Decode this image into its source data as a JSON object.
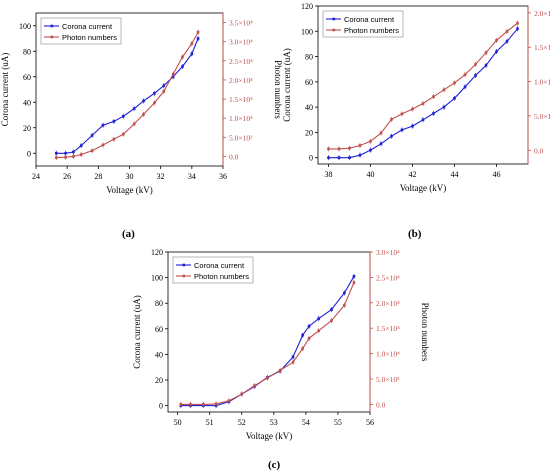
{
  "chart_data": [
    {
      "type": "line",
      "panel_label": "(a)",
      "xlabel": "Voltage (kV)",
      "ylabel_left": "Corona current (uA)",
      "ylabel_right": "Photon numbers",
      "xlim": [
        24,
        36
      ],
      "ylim_left": [
        -10,
        110
      ],
      "ylim_right": [
        -2500,
        37500
      ],
      "x_ticks": [
        "24",
        "26",
        "28",
        "30",
        "32",
        "34",
        "36"
      ],
      "y_left_ticks": [
        "0",
        "20",
        "40",
        "60",
        "80",
        "100"
      ],
      "y_right_ticks": [
        "0.0",
        "5.0×10³",
        "1.0×10⁴",
        "1.5×10⁴",
        "2.0×10⁴",
        "2.5×10⁴",
        "3.0×10⁴",
        "3.5×10⁴"
      ],
      "legend_position": "top-left",
      "series": [
        {
          "name": "Corona current",
          "axis": "left",
          "color": "#1f1fd6",
          "x": [
            25.3,
            25.9,
            26.4,
            26.9,
            27.6,
            28.3,
            29.0,
            29.6,
            30.3,
            30.9,
            31.6,
            32.2,
            32.8,
            33.4,
            34.0,
            34.4
          ],
          "y": [
            0,
            0,
            1,
            6,
            14,
            22,
            25,
            29,
            35,
            41,
            47,
            53,
            60,
            68,
            78,
            90
          ]
        },
        {
          "name": "Photon numbers",
          "axis": "right",
          "color": "#c0504d",
          "x": [
            25.3,
            25.9,
            26.4,
            26.9,
            27.6,
            28.3,
            29.0,
            29.6,
            30.3,
            30.9,
            31.6,
            32.2,
            32.8,
            33.4,
            34.0,
            34.4
          ],
          "y": [
            -300,
            -200,
            0,
            500,
            1500,
            3000,
            4500,
            5800,
            8500,
            11000,
            14000,
            17000,
            21500,
            26000,
            29500,
            32500
          ]
        }
      ]
    },
    {
      "type": "line",
      "panel_label": "(b)",
      "xlabel": "Voltage (kV)",
      "ylabel_left": "Corona current (uA)",
      "ylabel_right": "Photon numbers",
      "xlim": [
        37.5,
        47.5
      ],
      "ylim_left": [
        -5,
        120
      ],
      "ylim_right": [
        -2000,
        21000
      ],
      "x_ticks": [
        "38",
        "40",
        "42",
        "44",
        "46"
      ],
      "y_left_ticks": [
        "0",
        "20",
        "40",
        "60",
        "80",
        "100",
        "120"
      ],
      "y_right_ticks": [
        "0.0",
        "5.0×10³",
        "1.0×10⁴",
        "1.5×10⁴",
        "2.0×10⁴"
      ],
      "legend_position": "top-left",
      "series": [
        {
          "name": "Corona current",
          "axis": "left",
          "color": "#1f1fd6",
          "x": [
            38.0,
            38.5,
            39.0,
            39.5,
            40.0,
            40.5,
            41.0,
            41.5,
            42.0,
            42.5,
            43.0,
            43.5,
            44.0,
            44.5,
            45.0,
            45.5,
            46.0,
            46.5,
            47.0
          ],
          "y": [
            0,
            0,
            0,
            2,
            6,
            11,
            17,
            22,
            25,
            30,
            35,
            40,
            47,
            56,
            65,
            73,
            84,
            92,
            102
          ]
        },
        {
          "name": "Photon numbers",
          "axis": "right",
          "color": "#c0504d",
          "x": [
            38.0,
            38.5,
            39.0,
            39.5,
            40.0,
            40.5,
            41.0,
            41.5,
            42.0,
            42.5,
            43.0,
            43.5,
            44.0,
            44.5,
            45.0,
            45.5,
            46.0,
            46.5,
            47.0
          ],
          "y": [
            200,
            200,
            300,
            700,
            1300,
            2500,
            4500,
            5300,
            6000,
            6800,
            7800,
            8800,
            9800,
            11000,
            12500,
            14200,
            16000,
            17300,
            18500
          ]
        }
      ]
    },
    {
      "type": "line",
      "panel_label": "(c)",
      "xlabel": "Voltage (kV)",
      "ylabel_left": "Corona current (uA)",
      "ylabel_right": "Photon numbers",
      "xlim": [
        49.7,
        56
      ],
      "ylim_left": [
        -5,
        120
      ],
      "ylim_right": [
        -1500,
        30000
      ],
      "x_ticks": [
        "50",
        "51",
        "52",
        "53",
        "54",
        "55",
        "56"
      ],
      "y_left_ticks": [
        "0",
        "20",
        "40",
        "60",
        "80",
        "100",
        "120"
      ],
      "y_right_ticks": [
        "0.0",
        "5.0×10³",
        "1.0×10⁴",
        "1.5×10⁴",
        "2.0×10⁴",
        "2.5×10⁴",
        "3.0×10⁴"
      ],
      "legend_position": "top-left",
      "series": [
        {
          "name": "Corona current",
          "axis": "left",
          "color": "#1f1fd6",
          "x": [
            50.1,
            50.4,
            50.8,
            51.2,
            51.6,
            52.0,
            52.4,
            52.8,
            53.2,
            53.6,
            53.9,
            54.1,
            54.4,
            54.8,
            55.2,
            55.5
          ],
          "y": [
            0,
            0,
            0,
            0,
            3,
            9,
            15,
            22,
            27,
            38,
            55,
            62,
            68,
            75,
            88,
            101
          ]
        },
        {
          "name": "Photon numbers",
          "axis": "right",
          "color": "#c0504d",
          "x": [
            50.1,
            50.4,
            50.8,
            51.2,
            51.6,
            52.0,
            52.4,
            52.8,
            53.2,
            53.6,
            53.9,
            54.1,
            54.4,
            54.8,
            55.2,
            55.5
          ],
          "y": [
            0,
            0,
            0,
            100,
            700,
            2000,
            3700,
            5200,
            6700,
            8300,
            11000,
            13000,
            14500,
            16500,
            19500,
            24000
          ]
        }
      ]
    }
  ]
}
